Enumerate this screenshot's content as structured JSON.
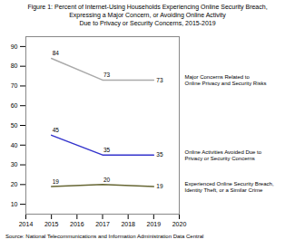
{
  "chart_data": {
    "type": "line",
    "title": "Figure 1: Percent of Internet-Using Households Experiencing Online Security Breach,\nExpressing a Major Concern, or Avoiding Online Activity\nDue to Privacy or Security Concerns, 2015-2019",
    "caption": "Source: National Telecommunications and Information Administration Data Central",
    "x": [
      2015,
      2017,
      2019
    ],
    "series": [
      {
        "name": "Major Concerns Related to\nOnline Privacy and Security Risks",
        "color": "#aaaaaa",
        "values": [
          84,
          73,
          73
        ]
      },
      {
        "name": "Online Activities Avoided Due to\nPrivacy or Security Concerns",
        "color": "#3333cc",
        "values": [
          45,
          35,
          35
        ]
      },
      {
        "name": "Experienced Online Security Breach,\nIdentity Theft, or a Similar Crime",
        "color": "#666633",
        "values": [
          19,
          20,
          19
        ]
      }
    ],
    "xlim": [
      2014,
      2020
    ],
    "xticks": [
      2014,
      2015,
      2016,
      2017,
      2018,
      2019,
      2020
    ],
    "ylim": [
      5,
      95
    ],
    "yticks": [
      10,
      20,
      30,
      40,
      50,
      60,
      70,
      80,
      90
    ],
    "grid": false,
    "data_labels": true
  }
}
